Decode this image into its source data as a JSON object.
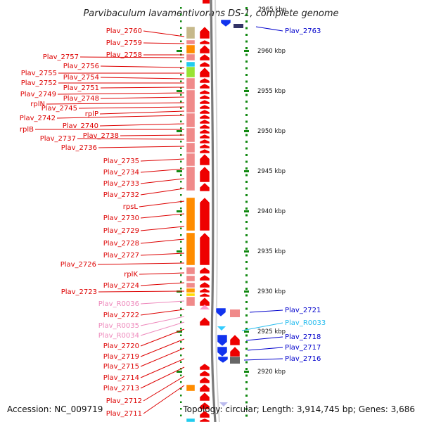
{
  "title": "Parvibaculum lavamentivorans DS-1, complete genome",
  "footer": {
    "accession": "Accession: NC_009719",
    "topology": "Topology: circular; Length: 3,914,745 bp; Genes: 3,686"
  },
  "ruler": {
    "cut_label": "2965 kbp",
    "ticks": [
      "2960 kbp",
      "2955 kbp",
      "2950 kbp",
      "2945 kbp",
      "2940 kbp",
      "2935 kbp",
      "2930 kbp",
      "2925 kbp",
      "2920 kbp"
    ]
  },
  "left_labels": [
    {
      "text": "Plav_2760",
      "kind": "gene"
    },
    {
      "text": "Plav_2759",
      "kind": "gene"
    },
    {
      "text": "Plav_2758",
      "kind": "gene"
    },
    {
      "text": "Plav_2757",
      "kind": "gene"
    },
    {
      "text": "Plav_2756",
      "kind": "gene"
    },
    {
      "text": "Plav_2755",
      "kind": "gene"
    },
    {
      "text": "Plav_2754",
      "kind": "gene"
    },
    {
      "text": "Plav_2752",
      "kind": "gene"
    },
    {
      "text": "Plav_2751",
      "kind": "gene"
    },
    {
      "text": "Plav_2749",
      "kind": "gene"
    },
    {
      "text": "Plav_2748",
      "kind": "gene"
    },
    {
      "text": "rplN",
      "kind": "gene"
    },
    {
      "text": "Plav_2745",
      "kind": "gene"
    },
    {
      "text": "rplP",
      "kind": "gene"
    },
    {
      "text": "Plav_2742",
      "kind": "gene"
    },
    {
      "text": "Plav_2740",
      "kind": "gene"
    },
    {
      "text": "rplB",
      "kind": "gene"
    },
    {
      "text": "Plav_2738",
      "kind": "gene"
    },
    {
      "text": "Plav_2737",
      "kind": "gene"
    },
    {
      "text": "Plav_2736",
      "kind": "gene"
    },
    {
      "text": "Plav_2735",
      "kind": "gene"
    },
    {
      "text": "Plav_2734",
      "kind": "gene"
    },
    {
      "text": "Plav_2733",
      "kind": "gene"
    },
    {
      "text": "Plav_2732",
      "kind": "gene"
    },
    {
      "text": "rpsL",
      "kind": "gene"
    },
    {
      "text": "Plav_2730",
      "kind": "gene"
    },
    {
      "text": "Plav_2729",
      "kind": "gene"
    },
    {
      "text": "Plav_2728",
      "kind": "gene"
    },
    {
      "text": "Plav_2727",
      "kind": "gene"
    },
    {
      "text": "Plav_2726",
      "kind": "gene"
    },
    {
      "text": "rplK",
      "kind": "gene"
    },
    {
      "text": "Plav_2724",
      "kind": "gene"
    },
    {
      "text": "Plav_2723",
      "kind": "gene"
    },
    {
      "text": "Plav_R0036",
      "kind": "rna"
    },
    {
      "text": "Plav_2722",
      "kind": "gene"
    },
    {
      "text": "Plav_R0035",
      "kind": "rna"
    },
    {
      "text": "Plav_R0034",
      "kind": "rna"
    },
    {
      "text": "Plav_2720",
      "kind": "gene"
    },
    {
      "text": "Plav_2719",
      "kind": "gene"
    },
    {
      "text": "Plav_2715",
      "kind": "gene"
    },
    {
      "text": "Plav_2714",
      "kind": "gene"
    },
    {
      "text": "Plav_2713",
      "kind": "gene"
    },
    {
      "text": "Plav_2712",
      "kind": "gene"
    },
    {
      "text": "Plav_2711",
      "kind": "gene"
    }
  ],
  "right_labels": [
    {
      "text": "Plav_2763",
      "kind": "gene"
    },
    {
      "text": "Plav_2721",
      "kind": "gene"
    },
    {
      "text": "Plav_R0033",
      "kind": "rna"
    },
    {
      "text": "Plav_2718",
      "kind": "gene"
    },
    {
      "text": "Plav_2717",
      "kind": "gene"
    },
    {
      "text": "Plav_2716",
      "kind": "gene"
    }
  ],
  "colors": {
    "gene_label_left": "#dd0000",
    "gene_label_right": "#0000cc",
    "rna_label_left": "#ee88bb",
    "rna_label_right": "#22bbee",
    "forward_arrow": "#ee0000",
    "reverse_arrow": "#1133ee",
    "backbone": "#888888",
    "tick": "#118811"
  }
}
